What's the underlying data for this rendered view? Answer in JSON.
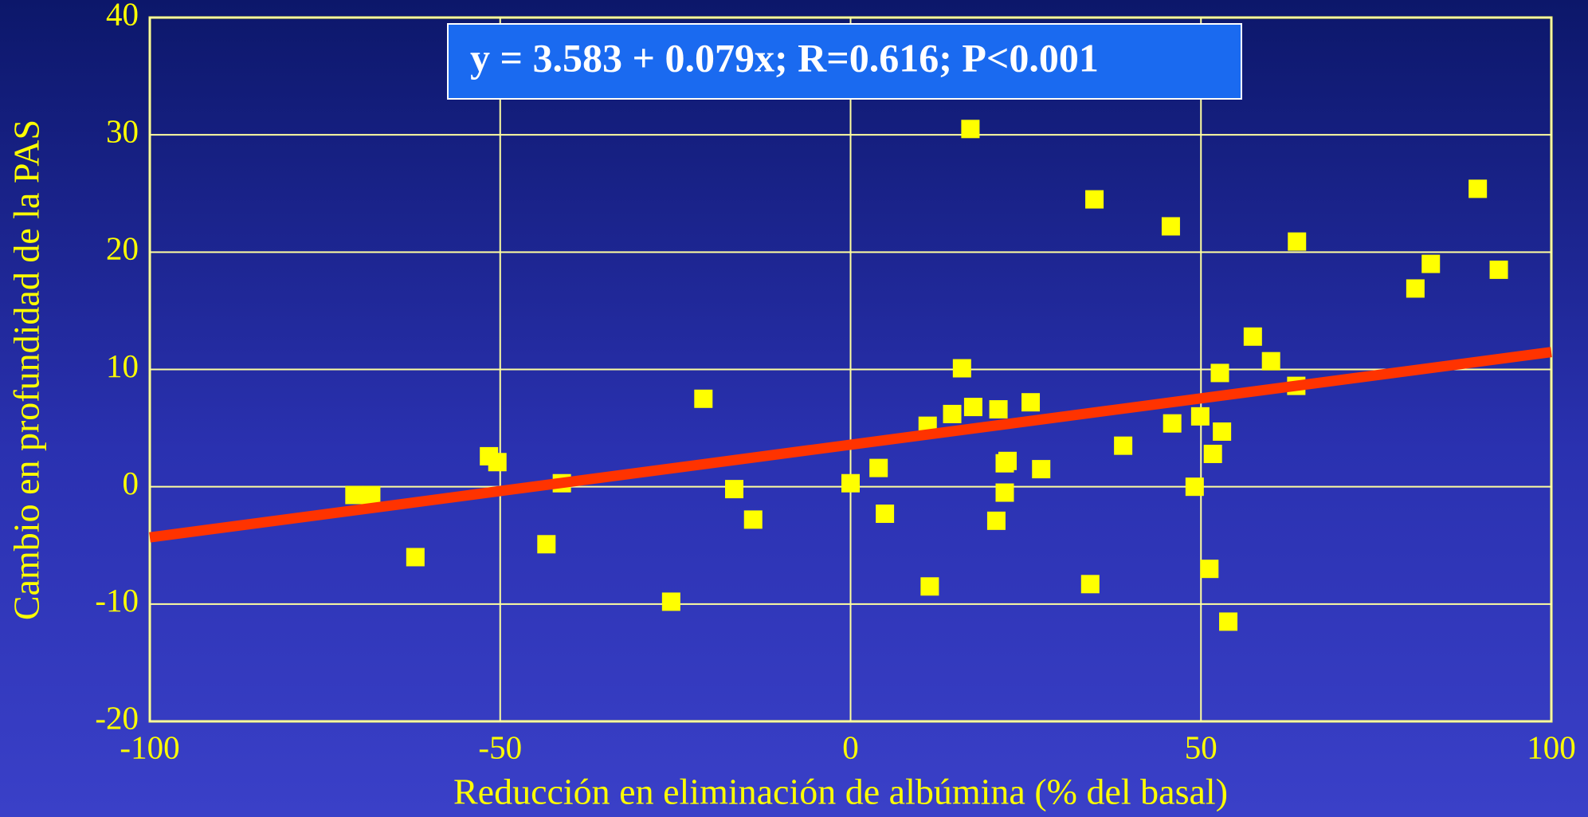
{
  "chart_data": {
    "type": "scatter",
    "x_label": "Reducción en eliminación de albúmina (% del basal)",
    "y_label": "Cambio en profundidad de la PAS",
    "annotation": "y = 3.583 + 0.079x; R=0.616; P<0.001",
    "xlim": [
      -100,
      100
    ],
    "ylim": [
      -20,
      40
    ],
    "xticks": [
      -100,
      -50,
      0,
      50,
      100
    ],
    "yticks": [
      -20,
      -10,
      0,
      10,
      20,
      30,
      40
    ],
    "grid": true,
    "color": "#ffff00",
    "trendline": {
      "intercept": 3.583,
      "slope": 0.079,
      "color": "#ff3300"
    },
    "x": [
      -70.8,
      -68.4,
      -62.1,
      -51.6,
      -50.4,
      -43.4,
      -41.2,
      -25.6,
      -21.0,
      -16.6,
      -13.9,
      0.0,
      4.0,
      4.9,
      11.0,
      11.3,
      14.5,
      15.9,
      17.1,
      17.5,
      20.8,
      21.1,
      22.0,
      22.4,
      22.0,
      25.7,
      27.2,
      34.2,
      34.8,
      38.9,
      45.7,
      45.9,
      49.1,
      49.9,
      51.2,
      51.7,
      52.7,
      53.0,
      53.9,
      57.4,
      60.0,
      63.6,
      63.7,
      80.6,
      82.8,
      89.5,
      92.5
    ],
    "values": [
      -0.7,
      -0.7,
      -6.0,
      2.6,
      2.1,
      -4.9,
      0.3,
      -9.8,
      7.5,
      -0.2,
      -2.8,
      0.3,
      1.6,
      -2.3,
      5.2,
      -8.5,
      6.2,
      10.1,
      30.5,
      6.8,
      -2.9,
      6.6,
      2.0,
      2.2,
      -0.5,
      7.2,
      1.5,
      -8.3,
      24.5,
      3.5,
      22.2,
      5.4,
      0,
      6.0,
      -7.0,
      2.8,
      9.7,
      4.7,
      -11.5,
      12.8,
      10.7,
      8.6,
      20.9,
      16.9,
      19.0,
      25.4,
      18.5
    ]
  }
}
